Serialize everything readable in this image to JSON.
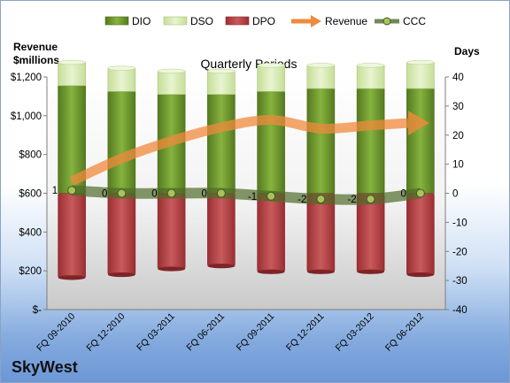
{
  "chart_data": {
    "type": "bar",
    "title": "Quarterly Periods",
    "categories": [
      "FQ 09-2010",
      "FQ 12-2010",
      "FQ 03-2011",
      "FQ 06-2011",
      "FQ 09-2011",
      "FQ 12-2011",
      "FQ 03-2012",
      "FQ 06-2012"
    ],
    "ylabel_left": "Revenue\n$millions",
    "ylabel_right": "Days",
    "y_left": {
      "min": 0,
      "max": 1200,
      "step": 200,
      "tick_labels": [
        "$-",
        "$200",
        "$400",
        "$600",
        "$800",
        "$1,000",
        "$1,200"
      ]
    },
    "y_right": {
      "min": -40,
      "max": 40,
      "step": 10,
      "tick_labels": [
        "-40",
        "-30",
        "-20",
        "-10",
        "0",
        "10",
        "20",
        "30",
        "40"
      ]
    },
    "series": [
      {
        "name": "DIO",
        "kind": "stacked-bar",
        "axis": "right",
        "color": "#6f9a2f",
        "values": [
          37,
          35,
          34,
          34,
          35,
          36,
          36,
          36
        ]
      },
      {
        "name": "DSO",
        "kind": "stacked-bar",
        "axis": "right",
        "color": "#d8eab3",
        "values": [
          8,
          8,
          8,
          8,
          9,
          8,
          8,
          9
        ]
      },
      {
        "name": "DPO",
        "kind": "negative-bar",
        "axis": "right",
        "color": "#b8474a",
        "values": [
          -29,
          -28,
          -26,
          -25,
          -27,
          -27,
          -27,
          -28
        ]
      },
      {
        "name": "Revenue",
        "kind": "line-arrow",
        "axis": "left",
        "color": "#f08a3c",
        "values": [
          662,
          780,
          870,
          940,
          978,
          934,
          950,
          962
        ]
      },
      {
        "name": "CCC",
        "kind": "line-markers",
        "axis": "right",
        "color": "#4e6b2a",
        "values": [
          1,
          0,
          0,
          0,
          -1,
          -2,
          -2,
          0
        ]
      }
    ],
    "ccc_labels": [
      "1",
      "0",
      "0",
      "0",
      "-1",
      "-2",
      "-2",
      "0"
    ],
    "legend_position": "top",
    "grid": false,
    "footer": "SkyWest"
  }
}
